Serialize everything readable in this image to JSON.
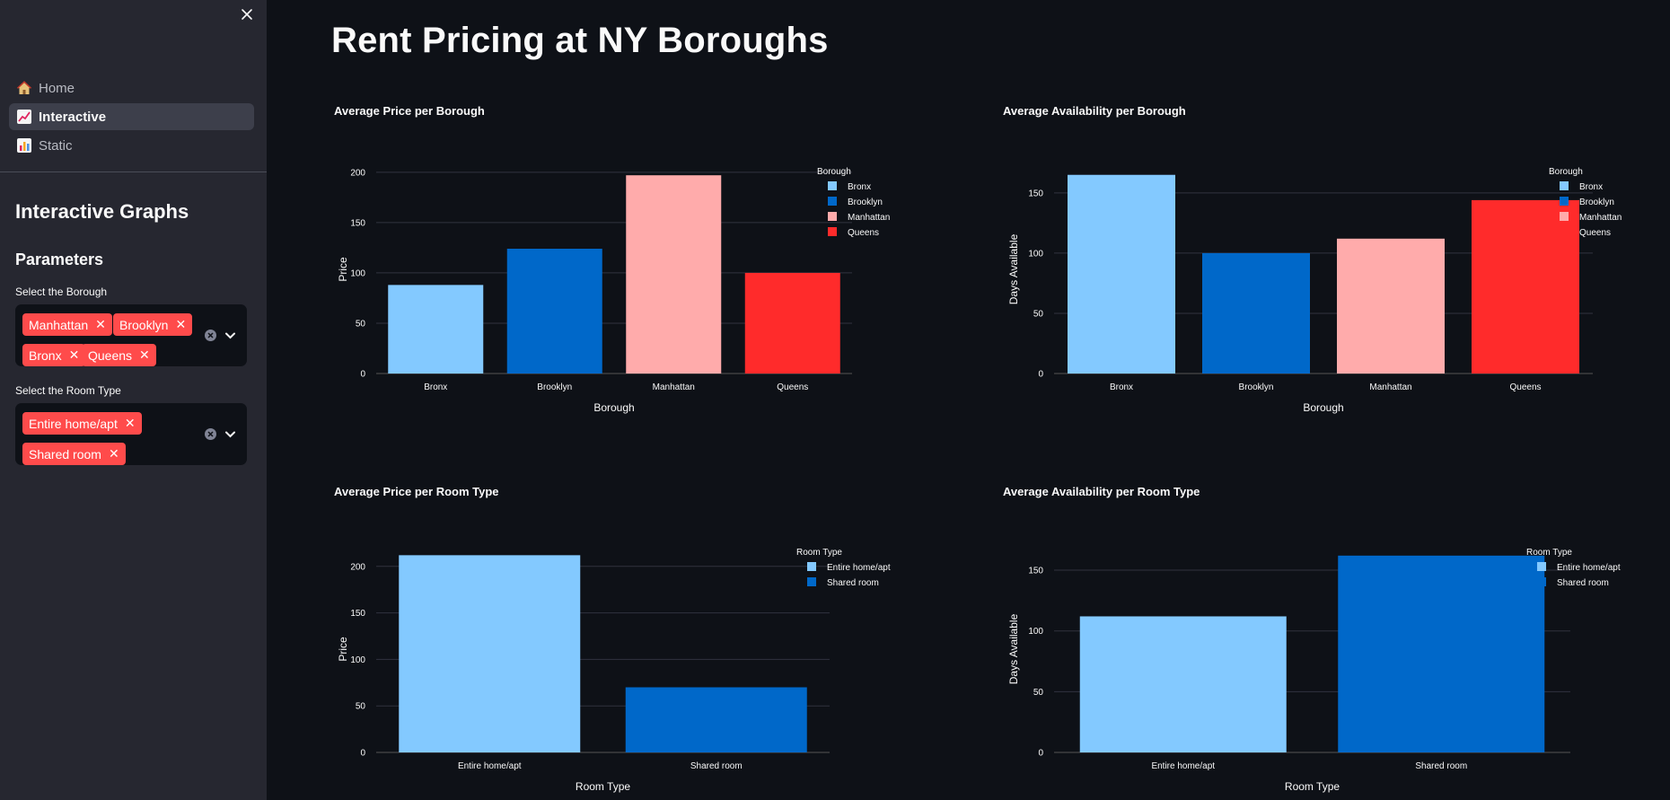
{
  "sidebar": {
    "close_icon": "close-icon",
    "nav": [
      {
        "label": "Home",
        "icon": "house-icon",
        "active": false
      },
      {
        "label": "Interactive",
        "icon": "chart-increasing-icon",
        "active": true
      },
      {
        "label": "Static",
        "icon": "bar-chart-icon",
        "active": false
      }
    ],
    "title": "Interactive Graphs",
    "parameters_heading": "Parameters",
    "borough_select": {
      "label": "Select the Borough",
      "selected": [
        "Manhattan",
        "Brooklyn",
        "Bronx",
        "Queens"
      ]
    },
    "room_select": {
      "label": "Select the Room Type",
      "selected": [
        "Entire home/apt",
        "Shared room"
      ]
    }
  },
  "main": {
    "title": "Rent Pricing at NY Boroughs"
  },
  "colors": {
    "light_blue": "#83c9ff",
    "blue": "#0068c9",
    "pink": "#ffabab",
    "red": "#ff2b2b",
    "accent": "#ff4b4b"
  },
  "chart_data": [
    {
      "type": "bar",
      "title": "Average Price per Borough",
      "categories": [
        "Bronx",
        "Brooklyn",
        "Manhattan",
        "Queens"
      ],
      "values": [
        88,
        124,
        197,
        100
      ],
      "colors": [
        "#83c9ff",
        "#0068c9",
        "#ffabab",
        "#ff2b2b"
      ],
      "xlabel": "Borough",
      "ylabel": "Price",
      "yticks": [
        0,
        50,
        100,
        150,
        200
      ],
      "ylim": [
        0,
        207
      ],
      "legend_title": "Borough",
      "legend": [
        "Bronx",
        "Brooklyn",
        "Manhattan",
        "Queens"
      ],
      "legend_position": "right",
      "grid": true
    },
    {
      "type": "bar",
      "title": "Average Availability per Borough",
      "categories": [
        "Bronx",
        "Brooklyn",
        "Manhattan",
        "Queens"
      ],
      "values": [
        165,
        100,
        112,
        144
      ],
      "colors": [
        "#83c9ff",
        "#0068c9",
        "#ffabab",
        "#ff2b2b"
      ],
      "xlabel": "Borough",
      "ylabel": "Days Available",
      "yticks": [
        0,
        50,
        100,
        150
      ],
      "ylim": [
        0,
        173
      ],
      "legend_title": "Borough",
      "legend": [
        "Bronx",
        "Brooklyn",
        "Manhattan",
        "Queens"
      ],
      "legend_position": "right",
      "grid": true
    },
    {
      "type": "bar",
      "title": "Average Price per Room Type",
      "categories": [
        "Entire home/apt",
        "Shared room"
      ],
      "values": [
        212,
        70
      ],
      "colors": [
        "#83c9ff",
        "#0068c9"
      ],
      "xlabel": "Room Type",
      "ylabel": "Price",
      "yticks": [
        0,
        50,
        100,
        150,
        200
      ],
      "ylim": [
        0,
        222
      ],
      "legend_title": "Room Type",
      "legend": [
        "Entire home/apt",
        "Shared room"
      ],
      "legend_position": "right",
      "grid": true
    },
    {
      "type": "bar",
      "title": "Average Availability per Room Type",
      "categories": [
        "Entire home/apt",
        "Shared room"
      ],
      "values": [
        112,
        162
      ],
      "colors": [
        "#83c9ff",
        "#0068c9"
      ],
      "xlabel": "Room Type",
      "ylabel": "Days Available",
      "yticks": [
        0,
        50,
        100,
        150
      ],
      "ylim": [
        0,
        170
      ],
      "legend_title": "Room Type",
      "legend": [
        "Entire home/apt",
        "Shared room"
      ],
      "legend_position": "right",
      "grid": true
    }
  ]
}
